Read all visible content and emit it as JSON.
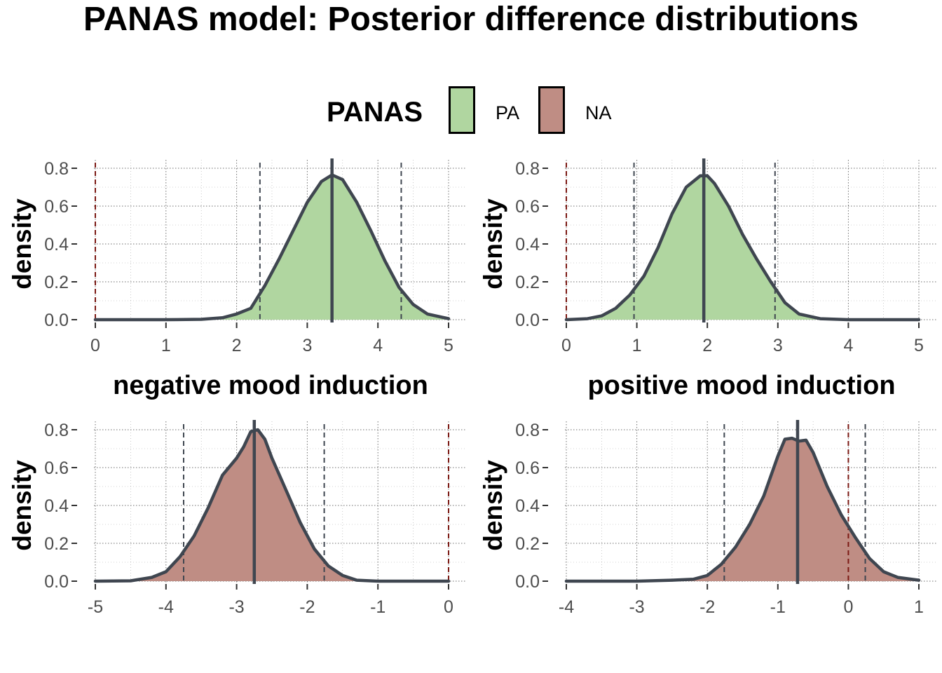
{
  "title": "PANAS model: Posterior difference distributions",
  "legend": {
    "title": "PANAS",
    "items": [
      {
        "label": "PA",
        "color": "#B0D6A0"
      },
      {
        "label": "NA",
        "color": "#BF8D84"
      }
    ]
  },
  "colors": {
    "outline": "#3F4650",
    "reference_line": "#7B1A14",
    "grid": "#6E6E6E",
    "tick_label": "#4D4D4D"
  },
  "chart_data": [
    {
      "type": "area",
      "title": "",
      "xlabel": "",
      "ylabel": "density",
      "fill": "#B0D6A0",
      "xlim": [
        0,
        5
      ],
      "ylim": [
        0,
        0.8
      ],
      "xticks": [
        "0",
        "1",
        "2",
        "3",
        "4",
        "5"
      ],
      "yticks": [
        "0.0",
        "0.2",
        "0.4",
        "0.6",
        "0.8"
      ],
      "reference_x": 0,
      "interval": [
        2.33,
        4.33
      ],
      "point_estimate": 3.35,
      "x": [
        0,
        1.0,
        1.5,
        1.8,
        2.0,
        2.2,
        2.4,
        2.6,
        2.8,
        3.0,
        3.2,
        3.35,
        3.5,
        3.7,
        3.9,
        4.1,
        4.3,
        4.5,
        4.7,
        5.0
      ],
      "y": [
        0,
        0,
        0.002,
        0.01,
        0.03,
        0.06,
        0.18,
        0.32,
        0.47,
        0.62,
        0.73,
        0.765,
        0.74,
        0.62,
        0.47,
        0.31,
        0.17,
        0.08,
        0.03,
        0.005
      ]
    },
    {
      "type": "area",
      "title": "",
      "xlabel": "",
      "ylabel": "density",
      "fill": "#B0D6A0",
      "xlim": [
        0,
        5
      ],
      "ylim": [
        0,
        0.8
      ],
      "xticks": [
        "0",
        "1",
        "2",
        "3",
        "4",
        "5"
      ],
      "yticks": [
        "0.0",
        "0.2",
        "0.4",
        "0.6",
        "0.8"
      ],
      "reference_x": 0,
      "interval": [
        0.96,
        2.96
      ],
      "point_estimate": 1.95,
      "x": [
        0,
        0.3,
        0.5,
        0.7,
        0.9,
        1.1,
        1.3,
        1.5,
        1.7,
        1.9,
        2.0,
        2.1,
        2.3,
        2.5,
        2.7,
        2.9,
        3.1,
        3.3,
        3.6,
        4.0,
        5.0
      ],
      "y": [
        0,
        0.005,
        0.02,
        0.06,
        0.13,
        0.23,
        0.38,
        0.56,
        0.7,
        0.76,
        0.76,
        0.72,
        0.6,
        0.45,
        0.32,
        0.2,
        0.09,
        0.03,
        0.005,
        0,
        0
      ]
    },
    {
      "type": "area",
      "title": "negative mood induction",
      "xlabel": "",
      "ylabel": "density",
      "fill": "#BF8D84",
      "xlim": [
        -5,
        0
      ],
      "ylim": [
        0,
        0.8
      ],
      "xticks": [
        "-5",
        "-4",
        "-3",
        "-2",
        "-1",
        "0"
      ],
      "yticks": [
        "0.0",
        "0.2",
        "0.4",
        "0.6",
        "0.8"
      ],
      "reference_x": 0,
      "interval": [
        -3.75,
        -1.76
      ],
      "point_estimate": -2.75,
      "x": [
        -5,
        -4.5,
        -4.2,
        -4.0,
        -3.8,
        -3.6,
        -3.4,
        -3.2,
        -3.0,
        -2.9,
        -2.8,
        -2.7,
        -2.6,
        -2.5,
        -2.3,
        -2.1,
        -1.9,
        -1.7,
        -1.5,
        -1.3,
        -1.0,
        0
      ],
      "y": [
        0,
        0.002,
        0.02,
        0.05,
        0.13,
        0.24,
        0.39,
        0.56,
        0.65,
        0.71,
        0.79,
        0.8,
        0.75,
        0.65,
        0.48,
        0.31,
        0.17,
        0.08,
        0.03,
        0.005,
        0,
        0
      ]
    },
    {
      "type": "area",
      "title": "positive mood induction",
      "xlabel": "",
      "ylabel": "density",
      "fill": "#BF8D84",
      "xlim": [
        -4,
        1
      ],
      "ylim": [
        0,
        0.8
      ],
      "xticks": [
        "-4",
        "-3",
        "-2",
        "-1",
        "0",
        "1"
      ],
      "yticks": [
        "0.0",
        "0.2",
        "0.4",
        "0.6",
        "0.8"
      ],
      "reference_x": 0,
      "interval": [
        -1.76,
        0.24
      ],
      "point_estimate": -0.72,
      "x": [
        -4,
        -3,
        -2.5,
        -2.2,
        -2.0,
        -1.8,
        -1.6,
        -1.4,
        -1.2,
        -1.0,
        -0.9,
        -0.8,
        -0.7,
        -0.6,
        -0.5,
        -0.3,
        -0.1,
        0.1,
        0.3,
        0.5,
        0.7,
        1.0
      ],
      "y": [
        0,
        0,
        0.005,
        0.01,
        0.03,
        0.09,
        0.18,
        0.3,
        0.45,
        0.66,
        0.75,
        0.755,
        0.74,
        0.745,
        0.68,
        0.5,
        0.35,
        0.23,
        0.12,
        0.05,
        0.02,
        0.005
      ]
    }
  ]
}
